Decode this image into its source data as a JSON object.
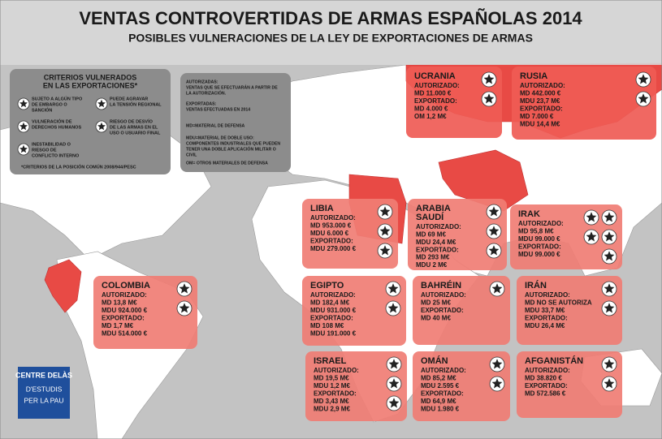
{
  "title": "VENTAS CONTROVERTIDAS DE ARMAS ESPAÑOLAS 2014",
  "subtitle": "POSIBLES VULNERACIONES DE LA LEY DE EXPORTACIONES DE ARMAS",
  "legend": {
    "title": [
      "CRITERIOS VULNERADOS",
      "EN LAS EXPORTACIONES*"
    ],
    "items": [
      [
        "SUJETO A ALGÚN TIPO",
        "DE EMBARGO O",
        "SANCIÓN"
      ],
      [
        "VULNERACIÓN DE",
        "DERECHOS HUMANOS"
      ],
      [
        "INESTABILIDAD O",
        "RIESGO DE",
        "CONFLICTO INTERNO"
      ],
      [
        "PUEDE AGRAVAR",
        "LA TENSIÓN REGIONAL"
      ],
      [
        "RIESGO DE DESVÍO",
        "DE LAS ARMAS EN EL",
        "USO O USUARIO FINAL"
      ]
    ],
    "footnote": "*CRITERIOS DE LA POSICIÓN COMÚN 2008/944/PESC"
  },
  "glossary": [
    "AUTORIZADAS:",
    "VENTAS QUE SE EFECTUARÁN A PARTIR DE",
    "LA AUTORIZACIÓN.",
    "EXPORTADAS:",
    "VENTAS EFECTUADAS EN 2014",
    "MD=MATERIAL DE DEFENSA",
    "MDU=MATERIAL DE DOBLE USO:",
    "COMPONENTES INDUSTRIALES QUE PUEDEN",
    "TENER UNA DOBLE APLICACIÓN MILITAR O",
    "CIVIL",
    "OM= OTROS MATERIALES DE DEFENSA"
  ],
  "countries": [
    {
      "name": [
        "UCRANIA"
      ],
      "lines": [
        "AUTORIZADO:",
        "MD 11.000 €",
        "EXPORTADO:",
        "MD 4.000 €",
        "OM 1,2 M€"
      ]
    },
    {
      "name": [
        "RUSIA"
      ],
      "lines": [
        "AUTORIZADO:",
        "MD 442.000 €",
        "MDU 23,7 M€",
        "EXPORTADO:",
        "MD 7.000 €",
        "MDU 14,4 M€"
      ]
    },
    {
      "name": [
        "LIBIA"
      ],
      "lines": [
        "AUTORIZADO:",
        "MD 953.000 €",
        "MDU 6.000 €",
        "EXPORTADO:",
        "MDU 279.000 €"
      ]
    },
    {
      "name": [
        "ARABIA",
        "SAUDÍ"
      ],
      "lines": [
        "AUTORIZADO:",
        "MD 69 M€",
        "MDU 24,4 M€",
        "EXPORTADO:",
        "MD 293 M€",
        "MDU 2 M€"
      ]
    },
    {
      "name": [
        "IRAK"
      ],
      "lines": [
        "AUTORIZADO:",
        "MD 95,8 M€",
        "MDU 99.000 €",
        "EXPORTADO:",
        "MDU 99.000 €"
      ]
    },
    {
      "name": [
        "COLOMBIA"
      ],
      "lines": [
        "AUTORIZADO:",
        "MD 13,8 M€",
        "MDU 924.000 €",
        "EXPORTADO:",
        "MD 1,7 M€",
        "MDU 514.000 €"
      ]
    },
    {
      "name": [
        "EGIPTO"
      ],
      "lines": [
        "AUTORIZADO:",
        "MD 182,4 M€",
        "MDU 931.000 €",
        "EXPORTADO:",
        "MD 108 M€",
        "MDU 191.000 €"
      ]
    },
    {
      "name": [
        "BAHRÉIN"
      ],
      "lines": [
        "AUTORIZADO:",
        "MD 25 M€",
        "EXPORTADO:",
        "MD 40 M€"
      ]
    },
    {
      "name": [
        "IRÁN"
      ],
      "lines": [
        "AUTORIZADO:",
        "MD NO SE AUTORIZA",
        "MDU 33,7 M€",
        "EXPORTADO:",
        "MDU 26,4 M€"
      ]
    },
    {
      "name": [
        "ISRAEL"
      ],
      "lines": [
        "AUTORIZADO:",
        "MD 19,5 M€",
        "MDU 1,2 M€",
        "EXPORTADO:",
        "MD 3,43 M€",
        "MDU 2,9 M€"
      ]
    },
    {
      "name": [
        "OMÁN"
      ],
      "lines": [
        "AUTORIZADO:",
        "MD 85,2 M€",
        "MDU 2.595 €",
        "EXPORTADO:",
        "MD 64,9 M€",
        "MDU 1.980 €"
      ]
    },
    {
      "name": [
        "AFGANISTÁN"
      ],
      "lines": [
        "AUTORIZADO:",
        "MD 38.820 €",
        "EXPORTADO:",
        "MD 572.586 €"
      ]
    }
  ],
  "logo": [
    "CENTRE DELÀS",
    "D'ESTUDIS",
    "PER LA PAU"
  ]
}
